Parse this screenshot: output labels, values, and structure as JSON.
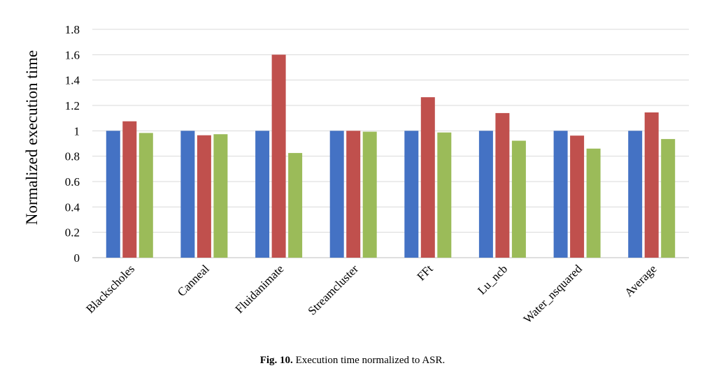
{
  "chart_data": {
    "type": "bar",
    "categories": [
      "Blackscholes",
      "Canneal",
      "Fluidanimate",
      "Streamcluster",
      "FFt",
      "Lu_ncb",
      "Water_nsquared",
      "Average"
    ],
    "series": [
      {
        "color": "#4472C4",
        "values": [
          1.0,
          1.0,
          1.0,
          1.0,
          1.0,
          1.0,
          1.0,
          1.0
        ]
      },
      {
        "color": "#C0504D",
        "values": [
          1.075,
          0.965,
          1.6,
          1.0,
          1.265,
          1.14,
          0.962,
          1.145
        ]
      },
      {
        "color": "#9BBB59",
        "values": [
          0.983,
          0.973,
          0.825,
          0.993,
          0.987,
          0.922,
          0.86,
          0.935
        ]
      }
    ],
    "ylabel": "Normalized execution time",
    "xlabel": "",
    "ylim": [
      0,
      1.8
    ],
    "yticks": [
      0,
      0.2,
      0.4,
      0.6,
      0.8,
      1,
      1.2,
      1.4,
      1.6,
      1.8
    ],
    "ytick_labels": [
      "0",
      "0.2",
      "0.4",
      "0.6",
      "0.8",
      "1",
      "1.2",
      "1.4",
      "1.6",
      "1.8"
    ],
    "grid": true,
    "legend": "none"
  },
  "caption": {
    "label": "Fig. 10.",
    "text": "Execution time normalized to ASR."
  }
}
